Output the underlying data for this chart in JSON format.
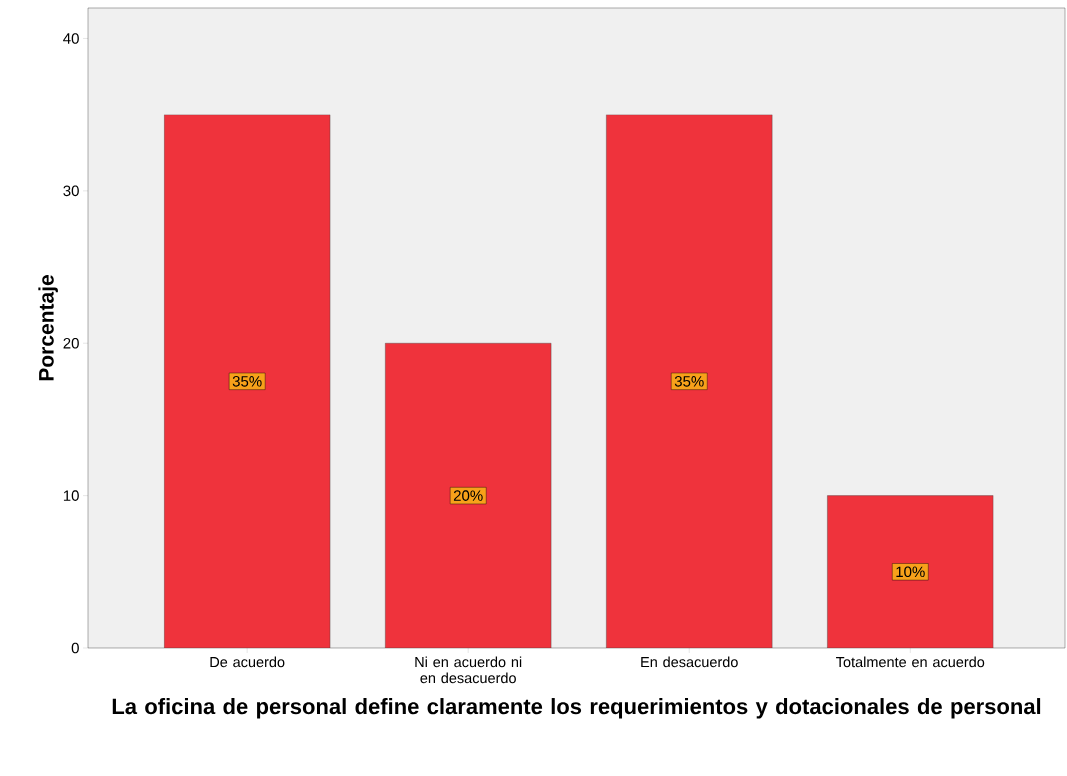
{
  "chart_data": {
    "type": "bar",
    "xlabel": "La oficina de personal define claramente los requerimientos y dotacionales de personal",
    "ylabel": "Porcentaje",
    "categories": [
      "De acuerdo",
      "Ni en  acuerdo ni en desacuerdo",
      "En desacuerdo",
      "Totalmente en acuerdo"
    ],
    "values": [
      35,
      20,
      35,
      10
    ],
    "value_labels": [
      "35%",
      "20%",
      "35%",
      "10%"
    ],
    "color": "#ef333c",
    "ylim": [
      0,
      42
    ],
    "yticks": [
      0,
      10,
      20,
      30,
      40
    ],
    "grid": false
  }
}
